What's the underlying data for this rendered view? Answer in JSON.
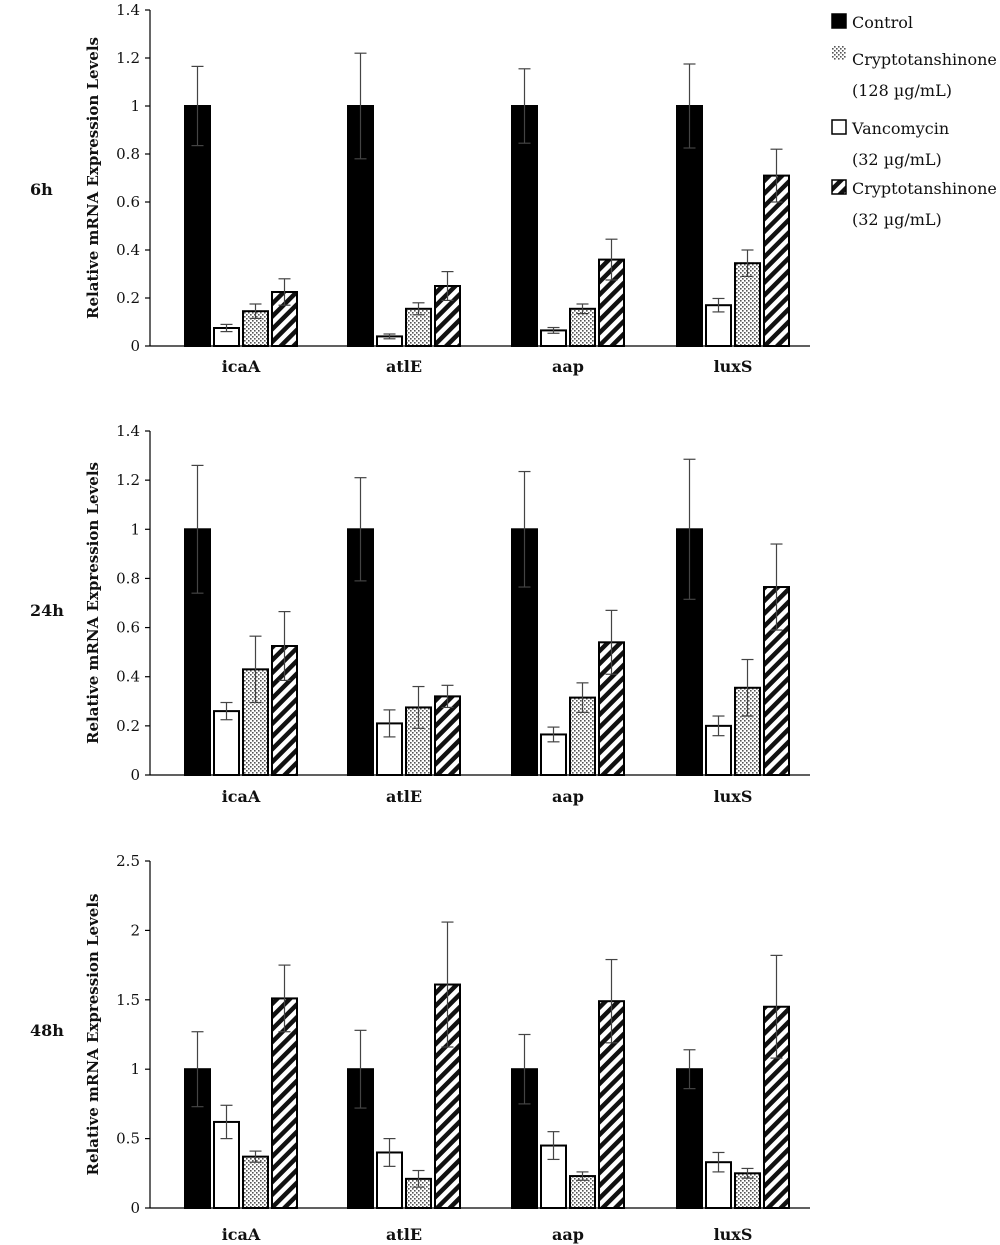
{
  "legend": {
    "items": [
      {
        "lines": [
          "Control"
        ],
        "pattern": "solid"
      },
      {
        "lines": [
          "Cryptotanshinone",
          "(128 µg/mL)"
        ],
        "pattern": "dots"
      },
      {
        "lines": [
          "Vancomycin",
          "(32 µg/mL)"
        ],
        "pattern": "white"
      },
      {
        "lines": [
          "Cryptotanshinone",
          "(32 µg/mL)"
        ],
        "pattern": "hatch"
      }
    ]
  },
  "chart_data": [
    {
      "type": "bar",
      "panel_label": "6h",
      "ylabel": "Relative mRNA Expression Levels",
      "categories": [
        "icaA",
        "atlE",
        "aap",
        "luxS"
      ],
      "ylim": [
        0,
        1.4
      ],
      "yticks": [
        "0",
        "0.2",
        "0.4",
        "0.6",
        "0.8",
        "1",
        "1.2",
        "1.4"
      ],
      "series": [
        {
          "pattern": "solid",
          "values": [
            1.0,
            1.0,
            1.0,
            1.0
          ],
          "errors": [
            0.165,
            0.22,
            0.155,
            0.175
          ]
        },
        {
          "pattern": "white",
          "values": [
            0.075,
            0.04,
            0.065,
            0.17
          ],
          "errors": [
            0.015,
            0.01,
            0.012,
            0.028
          ]
        },
        {
          "pattern": "dots",
          "values": [
            0.145,
            0.155,
            0.155,
            0.345
          ],
          "errors": [
            0.03,
            0.025,
            0.02,
            0.055
          ]
        },
        {
          "pattern": "hatch",
          "values": [
            0.225,
            0.25,
            0.36,
            0.71
          ],
          "errors": [
            0.055,
            0.06,
            0.085,
            0.11
          ]
        }
      ]
    },
    {
      "type": "bar",
      "panel_label": "24h",
      "ylabel": "Relative mRNA Expression Levels",
      "categories": [
        "icaA",
        "atlE",
        "aap",
        "luxS"
      ],
      "ylim": [
        0,
        1.4
      ],
      "yticks": [
        "0",
        "0.2",
        "0.4",
        "0.6",
        "0.8",
        "1",
        "1.2",
        "1.4"
      ],
      "series": [
        {
          "pattern": "solid",
          "values": [
            1.0,
            1.0,
            1.0,
            1.0
          ],
          "errors": [
            0.26,
            0.21,
            0.235,
            0.285
          ]
        },
        {
          "pattern": "white",
          "values": [
            0.26,
            0.21,
            0.165,
            0.2
          ],
          "errors": [
            0.035,
            0.055,
            0.03,
            0.04
          ]
        },
        {
          "pattern": "dots",
          "values": [
            0.43,
            0.275,
            0.315,
            0.355
          ],
          "errors": [
            0.135,
            0.085,
            0.06,
            0.115
          ]
        },
        {
          "pattern": "hatch",
          "values": [
            0.525,
            0.32,
            0.54,
            0.765
          ],
          "errors": [
            0.14,
            0.045,
            0.13,
            0.175
          ]
        }
      ]
    },
    {
      "type": "bar",
      "panel_label": "48h",
      "ylabel": "Relative mRNA Expression Levels",
      "categories": [
        "icaA",
        "atlE",
        "aap",
        "luxS"
      ],
      "ylim": [
        0,
        2.5
      ],
      "yticks": [
        "0",
        "0.5",
        "1",
        "1.5",
        "2",
        "2.5"
      ],
      "series": [
        {
          "pattern": "solid",
          "values": [
            1.0,
            1.0,
            1.0,
            1.0
          ],
          "errors": [
            0.27,
            0.28,
            0.25,
            0.14
          ]
        },
        {
          "pattern": "white",
          "values": [
            0.62,
            0.4,
            0.45,
            0.33
          ],
          "errors": [
            0.12,
            0.1,
            0.1,
            0.07
          ]
        },
        {
          "pattern": "dots",
          "values": [
            0.37,
            0.21,
            0.23,
            0.25
          ],
          "errors": [
            0.04,
            0.06,
            0.03,
            0.035
          ]
        },
        {
          "pattern": "hatch",
          "values": [
            1.51,
            1.61,
            1.49,
            1.45
          ],
          "errors": [
            0.24,
            0.45,
            0.3,
            0.37
          ]
        }
      ]
    }
  ]
}
